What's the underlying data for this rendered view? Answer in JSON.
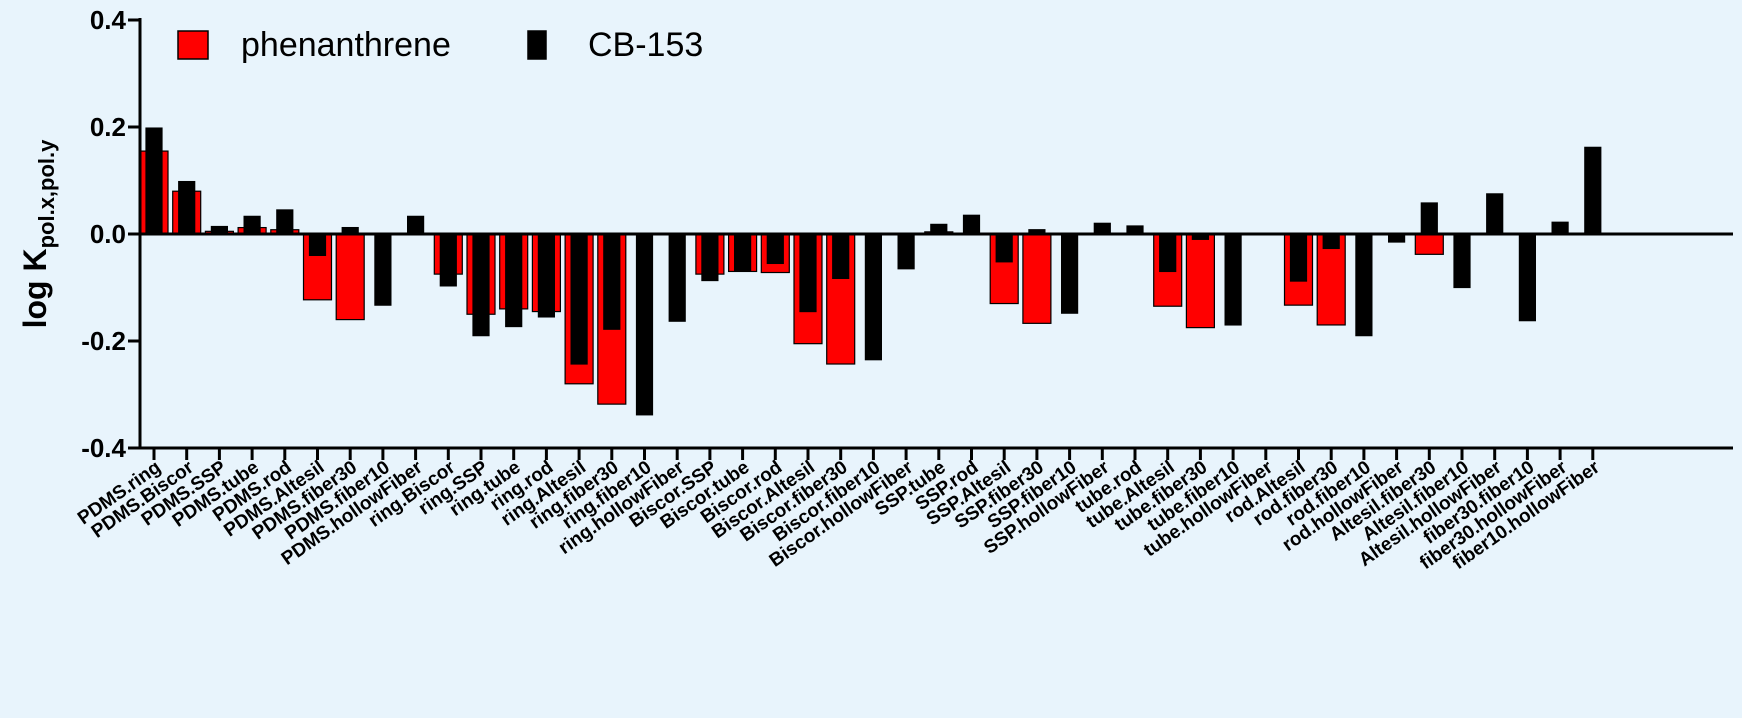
{
  "chart_data": {
    "type": "bar",
    "ylabel": "log K",
    "ylabel_subscript": "pol.x,pol.y",
    "ylim": [
      -0.4,
      0.4
    ],
    "yticks": [
      "0.4",
      "0.2",
      "0.0",
      "-0.2",
      "-0.4"
    ],
    "yticks_values": [
      0.4,
      0.2,
      0.0,
      -0.2,
      -0.4
    ],
    "grid": false,
    "legend_position": "top-left",
    "bar_layout": "overlapping",
    "categories": [
      "PDMS.ring",
      "PDMS.Biscor",
      "PDMS.SSP",
      "PDMS.tube",
      "PDMS.rod",
      "PDMS.Altesil",
      "PDMS.fiber30",
      "PDMS.fiber10",
      "PDMS.hollowFiber",
      "ring.Biscor",
      "ring.SSP",
      "ring.tube",
      "ring.rod",
      "ring.Altesil",
      "ring.fiber30",
      "ring.fiber10",
      "ring.hollowFiber",
      "Biscor.SSP",
      "Biscor.tube",
      "Biscor.rod",
      "Biscor.Altesil",
      "Biscor.fiber30",
      "Biscor.fiber10",
      "Biscor.hollowFiber",
      "SSP.tube",
      "SSP.rod",
      "SSP.Altesil",
      "SSP.fiber30",
      "SSP.fiber10",
      "SSP.hollowFiber",
      "tube.rod",
      "tube.Altesil",
      "tube.fiber30",
      "tube.fiber10",
      "tube.hollowFiber",
      "rod.Altesil",
      "rod.fiber30",
      "rod.fiber10",
      "rod.hollowFiber",
      "Altesil.fiber30",
      "Altesil.fiber10",
      "Altesil.hollowFiber",
      "fiber30.fiber10",
      "fiber30.hollowFiber",
      "fiber10.hollowFiber"
    ],
    "series": [
      {
        "name": "phenanthrene",
        "color": "#ff0000",
        "values": [
          0.155,
          0.08,
          0.005,
          0.012,
          0.008,
          -0.123,
          -0.16,
          null,
          null,
          -0.075,
          -0.15,
          -0.14,
          -0.145,
          -0.28,
          -0.318,
          null,
          null,
          -0.075,
          -0.07,
          -0.072,
          -0.205,
          -0.243,
          null,
          null,
          0.004,
          null,
          -0.13,
          -0.167,
          null,
          null,
          null,
          -0.135,
          -0.175,
          null,
          null,
          -0.133,
          -0.17,
          null,
          null,
          -0.038,
          null,
          null,
          null,
          null,
          null
        ]
      },
      {
        "name": "CB-153",
        "color": "#000000",
        "values": [
          0.198,
          0.098,
          0.014,
          0.033,
          0.045,
          -0.04,
          0.012,
          -0.133,
          0.033,
          -0.097,
          -0.19,
          -0.173,
          -0.155,
          -0.243,
          -0.178,
          -0.338,
          -0.163,
          -0.087,
          -0.068,
          -0.055,
          -0.145,
          -0.083,
          -0.235,
          -0.065,
          0.018,
          0.035,
          -0.052,
          0.008,
          -0.148,
          0.02,
          0.015,
          -0.07,
          -0.01,
          -0.17,
          null,
          -0.088,
          -0.027,
          -0.19,
          -0.015,
          0.058,
          -0.1,
          0.075,
          -0.162,
          0.022,
          0.162
        ]
      }
    ]
  }
}
